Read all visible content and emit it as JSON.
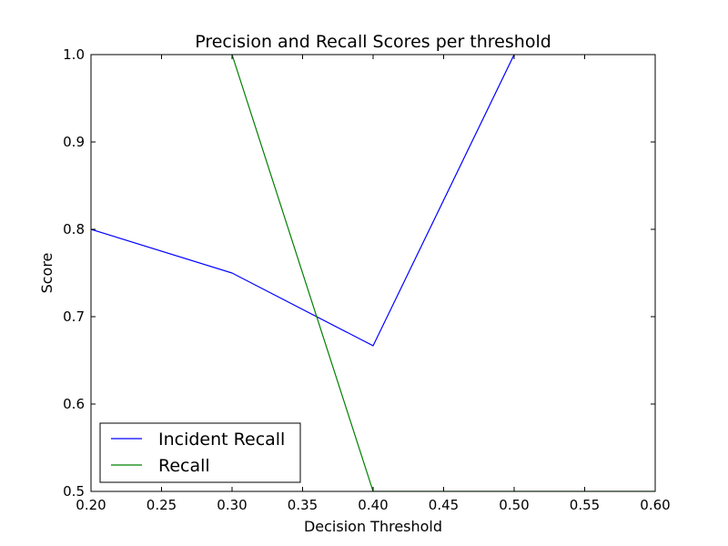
{
  "chart_data": {
    "type": "line",
    "title": "Precision and Recall Scores per threshold",
    "xlabel": "Decision Threshold",
    "ylabel": "Score",
    "xlim": [
      0.2,
      0.6
    ],
    "ylim": [
      0.5,
      1.0
    ],
    "xticks": [
      "0.20",
      "0.25",
      "0.30",
      "0.35",
      "0.40",
      "0.45",
      "0.50",
      "0.55",
      "0.60"
    ],
    "yticks": [
      "0.5",
      "0.6",
      "0.7",
      "0.8",
      "0.9",
      "1.0"
    ],
    "grid": false,
    "legend_position": "bottom-left",
    "series": [
      {
        "name": "Incident Recall",
        "color": "#0000ff",
        "x": [
          0.2,
          0.3,
          0.4,
          0.5
        ],
        "y": [
          0.8,
          0.75,
          0.6667,
          1.0
        ]
      },
      {
        "name": "Recall",
        "color": "#008000",
        "x": [
          0.3,
          0.4,
          0.5,
          0.6
        ],
        "y": [
          1.0,
          0.5,
          0.5,
          0.5
        ]
      }
    ]
  }
}
